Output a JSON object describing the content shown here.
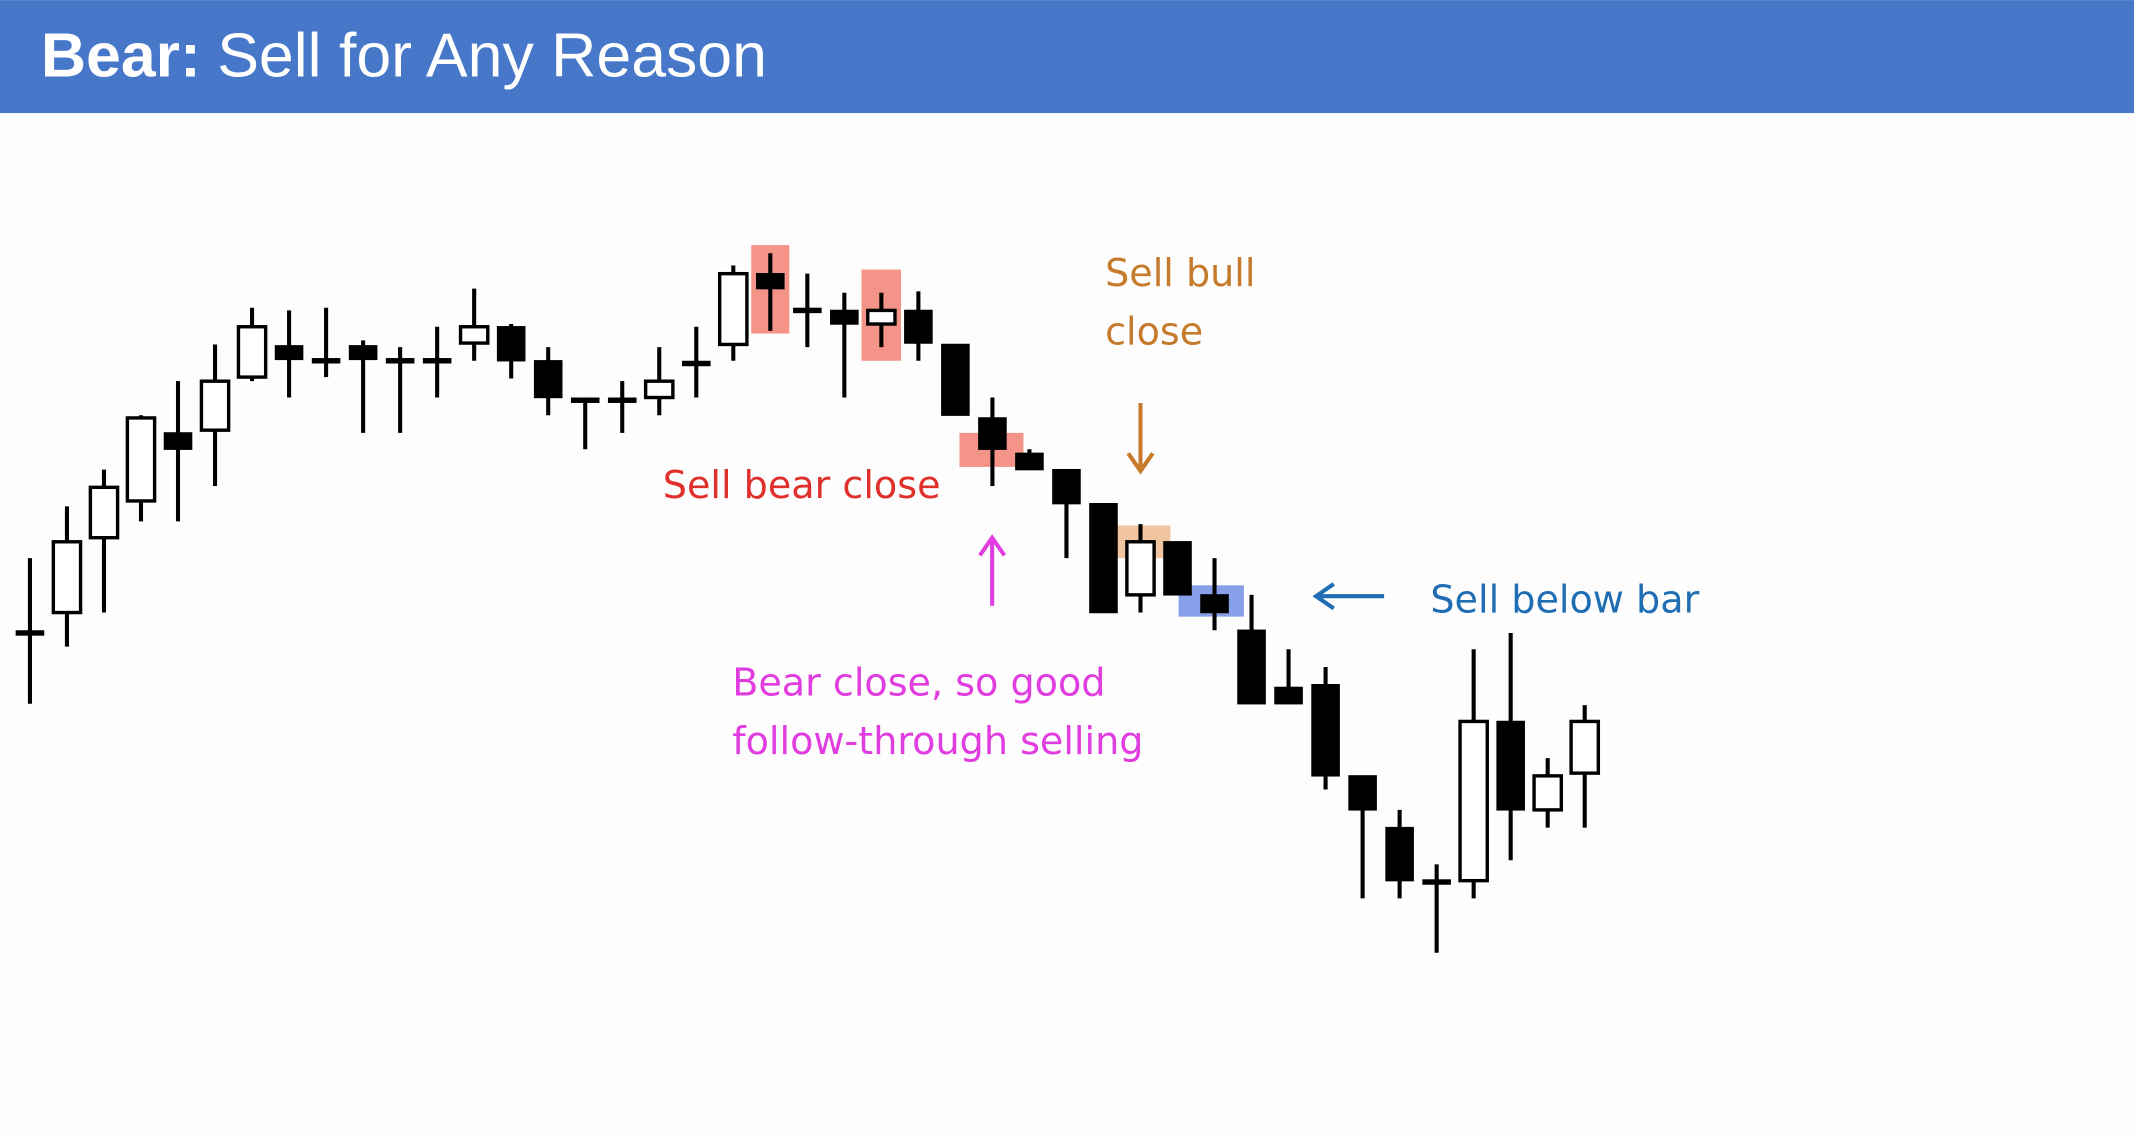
{
  "chart_data": {
    "type": "candlestick",
    "title": {
      "lead": "Bear:",
      "rest": "Sell for Any Reason"
    },
    "open": [
      255,
      270,
      325,
      352,
      402,
      404,
      443,
      466,
      455,
      466,
      455,
      455,
      468,
      480,
      455,
      426,
      426,
      428,
      453,
      467,
      519,
      492,
      492,
      482,
      492,
      467,
      413,
      387,
      375,
      350,
      283,
      322,
      283,
      257,
      215,
      217,
      150,
      112,
      72,
      73,
      190,
      125,
      152
    ],
    "high": [
      310,
      348,
      375,
      415,
      440,
      467,
      494,
      492,
      494,
      470,
      465,
      480,
      508,
      482,
      465,
      428,
      440,
      465,
      480,
      525,
      534,
      519,
      505,
      505,
      506,
      467,
      428,
      390,
      375,
      350,
      335,
      322,
      310,
      283,
      243,
      230,
      150,
      125,
      85,
      243,
      255,
      163,
      202
    ],
    "low": [
      203,
      245,
      270,
      337,
      337,
      363,
      440,
      428,
      443,
      402,
      402,
      428,
      455,
      442,
      415,
      390,
      402,
      415,
      428,
      455,
      477,
      465,
      428,
      465,
      455,
      415,
      363,
      375,
      310,
      270,
      270,
      283,
      257,
      203,
      203,
      140,
      60,
      60,
      20,
      60,
      88,
      112,
      112
    ],
    "close": [
      255,
      322,
      362,
      413,
      390,
      440,
      480,
      456,
      455,
      456,
      455,
      455,
      480,
      455,
      428,
      426,
      426,
      440,
      453,
      519,
      508,
      492,
      482,
      492,
      468,
      415,
      390,
      375,
      350,
      270,
      322,
      283,
      270,
      203,
      203,
      150,
      125,
      73,
      72,
      190,
      125,
      150,
      190
    ],
    "bull_color": "#ffffff",
    "bear_color": "#000000",
    "annotations": [
      {
        "lines": [
          "Sell bull",
          "close"
        ],
        "color": "#c57a2c"
      },
      {
        "lines": [
          "Sell bear close"
        ],
        "color": "#e0302b"
      },
      {
        "lines": [
          "Sell below bar"
        ],
        "color": "#1f6db3"
      },
      {
        "lines": [
          "Bear close, so good",
          "follow-through selling"
        ],
        "color": "#e03ce0"
      }
    ]
  }
}
